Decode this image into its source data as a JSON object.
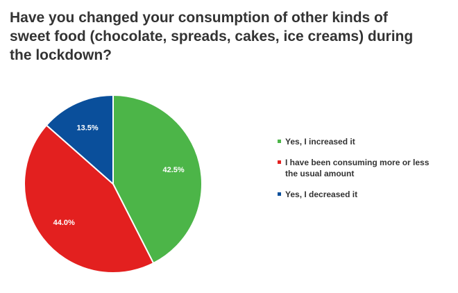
{
  "chart_data": {
    "type": "pie",
    "title_lines": [
      "Have you changed your consumption of other kinds of",
      "sweet food (chocolate, spreads, cakes, ice creams) during",
      "the lockdown?"
    ],
    "slices": [
      {
        "label": "Yes, I increased it",
        "value": 42.5,
        "value_label": "42.5%",
        "color": "#4cb548"
      },
      {
        "label": "I have been consuming more or less the usual amount",
        "label_lines": [
          "I have been consuming more or less",
          "the usual amount"
        ],
        "value": 44.0,
        "value_label": "44.0%",
        "color": "#e3201f"
      },
      {
        "label": "Yes, I decreased it",
        "value": 13.5,
        "value_label": "13.5%",
        "color": "#0a4f9b"
      }
    ],
    "legend_position": "right"
  }
}
